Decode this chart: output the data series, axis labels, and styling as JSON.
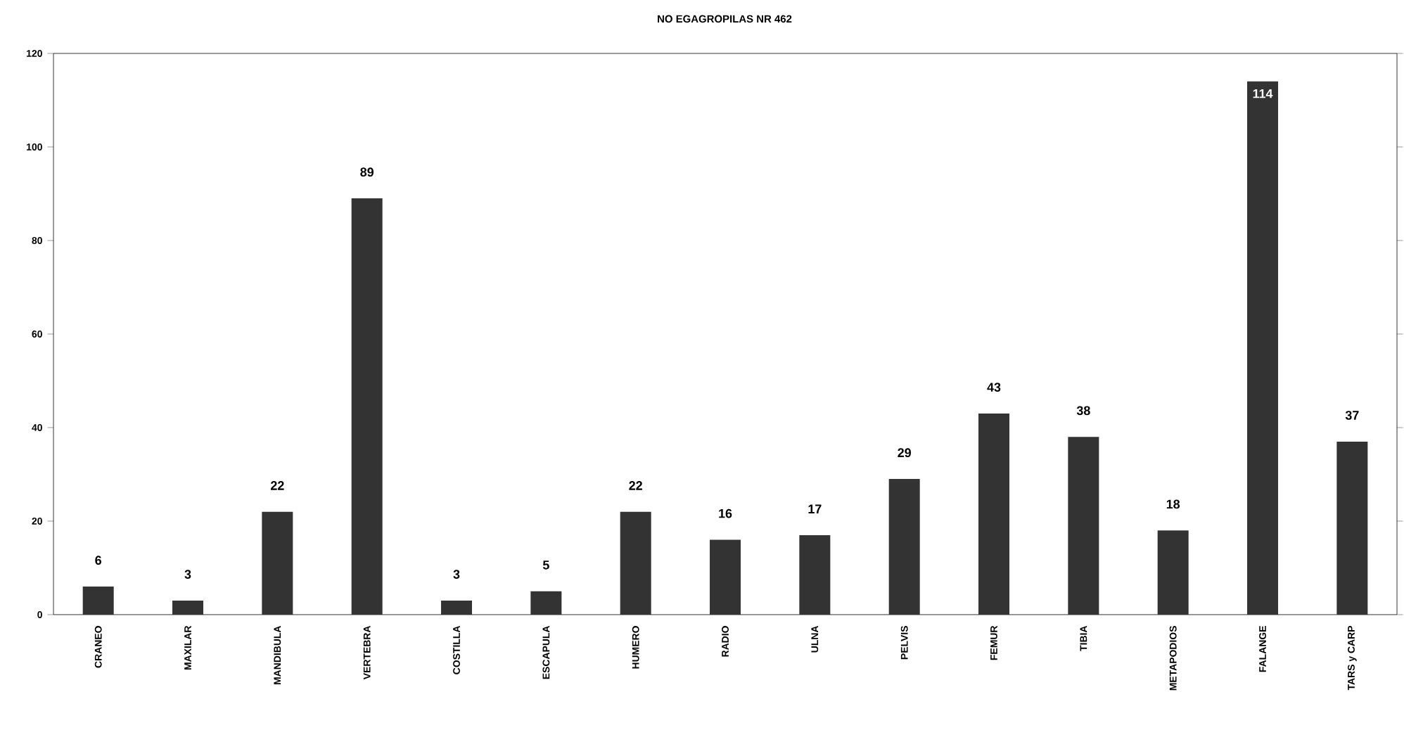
{
  "chart_data": {
    "type": "bar",
    "title": "NO EGAGROPILAS NR 462",
    "categories": [
      "CRANEO",
      "MAXILAR",
      "MANDIBULA",
      "VERTEBRA",
      "COSTILLA",
      "ESCAPULA",
      "HUMERO",
      "RADIO",
      "ULNA",
      "PELVIS",
      "FEMUR",
      "TIBIA",
      "METAPODIOS",
      "FALANGE",
      "TARS y CARP"
    ],
    "values": [
      6,
      3,
      22,
      89,
      3,
      5,
      22,
      16,
      17,
      29,
      43,
      38,
      18,
      114,
      37
    ],
    "color": "#333333",
    "ylim": [
      0,
      120
    ],
    "yticks": [
      0,
      20,
      40,
      60,
      80,
      100,
      120
    ],
    "data_labels": true
  }
}
